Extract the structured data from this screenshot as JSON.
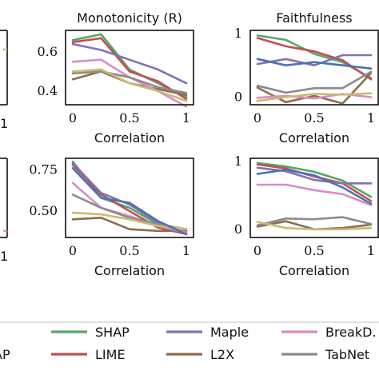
{
  "legend": {
    "entries": [
      {
        "label": "SHAP",
        "color": "#55a868"
      },
      {
        "label": "LIME",
        "color": "#c44e52"
      },
      {
        "label": "Maple",
        "color": "#8172b2"
      },
      {
        "label": "L2X",
        "color": "#8c6d4f"
      },
      {
        "label": "BreakD.",
        "color": "#da8bc3"
      },
      {
        "label": "TabNet",
        "color": "#8c8c8c"
      },
      {
        "label": "AP",
        "color": "#ccb974"
      }
    ]
  },
  "chart_data": [
    {
      "type": "line",
      "title": "Monotonicity (R)",
      "xlabel": "Correlation",
      "x": [
        0,
        0.25,
        0.5,
        0.75,
        1
      ],
      "xticks": [
        "0",
        "0.5",
        "1"
      ],
      "yticks": [
        "0.4",
        "0.6"
      ],
      "ylim": [
        0.33,
        0.71
      ],
      "series": [
        {
          "name": "SHAP",
          "values": [
            0.66,
            0.69,
            0.51,
            0.44,
            0.37
          ]
        },
        {
          "name": "LIME",
          "values": [
            0.65,
            0.67,
            0.5,
            0.45,
            0.36
          ]
        },
        {
          "name": "Maple",
          "values": [
            0.64,
            0.61,
            0.56,
            0.51,
            0.44
          ]
        },
        {
          "name": "L2X",
          "values": [
            0.46,
            0.5,
            0.44,
            0.41,
            0.38
          ]
        },
        {
          "name": "BreakD.",
          "values": [
            0.55,
            0.56,
            0.47,
            0.4,
            0.32
          ]
        },
        {
          "name": "TabNet",
          "values": [
            0.49,
            0.5,
            0.47,
            0.42,
            0.39
          ]
        },
        {
          "name": "AP",
          "values": [
            0.5,
            0.51,
            0.44,
            0.4,
            0.35
          ]
        }
      ]
    },
    {
      "type": "line",
      "title": "Faithfulness",
      "xlabel": "Correlation",
      "x": [
        0,
        0.25,
        0.5,
        0.75,
        1
      ],
      "xticks": [
        "0",
        "0.5",
        "1"
      ],
      "yticks": [
        "0",
        "1"
      ],
      "ylim": [
        -0.12,
        1.05
      ],
      "series": [
        {
          "name": "SHAP",
          "values": [
            0.97,
            0.9,
            0.68,
            0.55,
            0.3
          ]
        },
        {
          "name": "LIME",
          "values": [
            0.93,
            0.8,
            0.72,
            0.58,
            0.28
          ]
        },
        {
          "name": "Maple",
          "values": [
            0.52,
            0.6,
            0.5,
            0.66,
            0.66
          ]
        },
        {
          "name": "L2X",
          "values": [
            0.15,
            -0.08,
            0.02,
            -0.1,
            0.38
          ]
        },
        {
          "name": "BreakD.",
          "values": [
            -0.01,
            0.02,
            -0.02,
            0.05,
            0.0
          ]
        },
        {
          "name": "TabNet",
          "values": [
            0.18,
            0.07,
            0.14,
            0.14,
            0.4
          ]
        },
        {
          "name": "AP",
          "values": [
            -0.06,
            0.0,
            0.05,
            0.04,
            0.06
          ]
        },
        {
          "name": "",
          "values": [
            0.6,
            0.5,
            0.55,
            0.5,
            0.45
          ],
          "color": "#4c72b0"
        }
      ]
    },
    {
      "type": "line",
      "title": "",
      "xlabel": "Correlation",
      "x": [
        0,
        0.25,
        0.5,
        0.75,
        1
      ],
      "xticks": [
        "0",
        "0.5",
        "1"
      ],
      "yticks": [
        "0.50",
        "0.75"
      ],
      "ylim": [
        0.34,
        0.82
      ],
      "series": [
        {
          "name": "SHAP",
          "values": [
            0.8,
            0.58,
            0.52,
            0.42,
            0.37
          ]
        },
        {
          "name": "LIME",
          "values": [
            0.78,
            0.6,
            0.5,
            0.4,
            0.36
          ]
        },
        {
          "name": "Maple",
          "values": [
            0.79,
            0.61,
            0.54,
            0.43,
            0.36
          ]
        },
        {
          "name": "L2X",
          "values": [
            0.45,
            0.46,
            0.39,
            0.38,
            0.38
          ]
        },
        {
          "name": "BreakD.",
          "values": [
            0.67,
            0.52,
            0.47,
            0.41,
            0.37
          ]
        },
        {
          "name": "TabNet",
          "values": [
            0.6,
            0.52,
            0.46,
            0.42,
            0.39
          ]
        },
        {
          "name": "AP",
          "values": [
            0.49,
            0.48,
            0.45,
            0.41,
            0.39
          ]
        },
        {
          "name": "",
          "values": [
            0.76,
            0.58,
            0.55,
            0.44,
            0.36
          ],
          "color": "#4c72b0"
        }
      ]
    },
    {
      "type": "line",
      "title": "",
      "xlabel": "Correlation",
      "x": [
        0,
        0.25,
        0.5,
        0.75,
        1
      ],
      "xticks": [
        "0",
        "0.5",
        "1"
      ],
      "yticks": [
        "0",
        "1"
      ],
      "ylim": [
        -0.12,
        1.05
      ],
      "series": [
        {
          "name": "SHAP",
          "values": [
            0.98,
            0.93,
            0.85,
            0.72,
            0.48
          ]
        },
        {
          "name": "LIME",
          "values": [
            0.96,
            0.9,
            0.78,
            0.68,
            0.42
          ]
        },
        {
          "name": "Maple",
          "values": [
            0.91,
            0.86,
            0.73,
            0.68,
            0.68
          ]
        },
        {
          "name": "L2X",
          "values": [
            0.04,
            0.12,
            0.0,
            0.02,
            0.07
          ]
        },
        {
          "name": "BreakD.",
          "values": [
            0.66,
            0.66,
            0.58,
            0.52,
            0.36
          ]
        },
        {
          "name": "TabNet",
          "values": [
            0.06,
            0.16,
            0.15,
            0.18,
            0.08
          ]
        },
        {
          "name": "AP",
          "values": [
            0.11,
            0.02,
            0.0,
            0.0,
            0.02
          ]
        },
        {
          "name": "",
          "values": [
            0.82,
            0.88,
            0.8,
            0.62,
            0.38
          ],
          "color": "#4c72b0"
        }
      ]
    }
  ],
  "left_fragments": {
    "tick_top": "1",
    "tick_bottom": "1"
  }
}
